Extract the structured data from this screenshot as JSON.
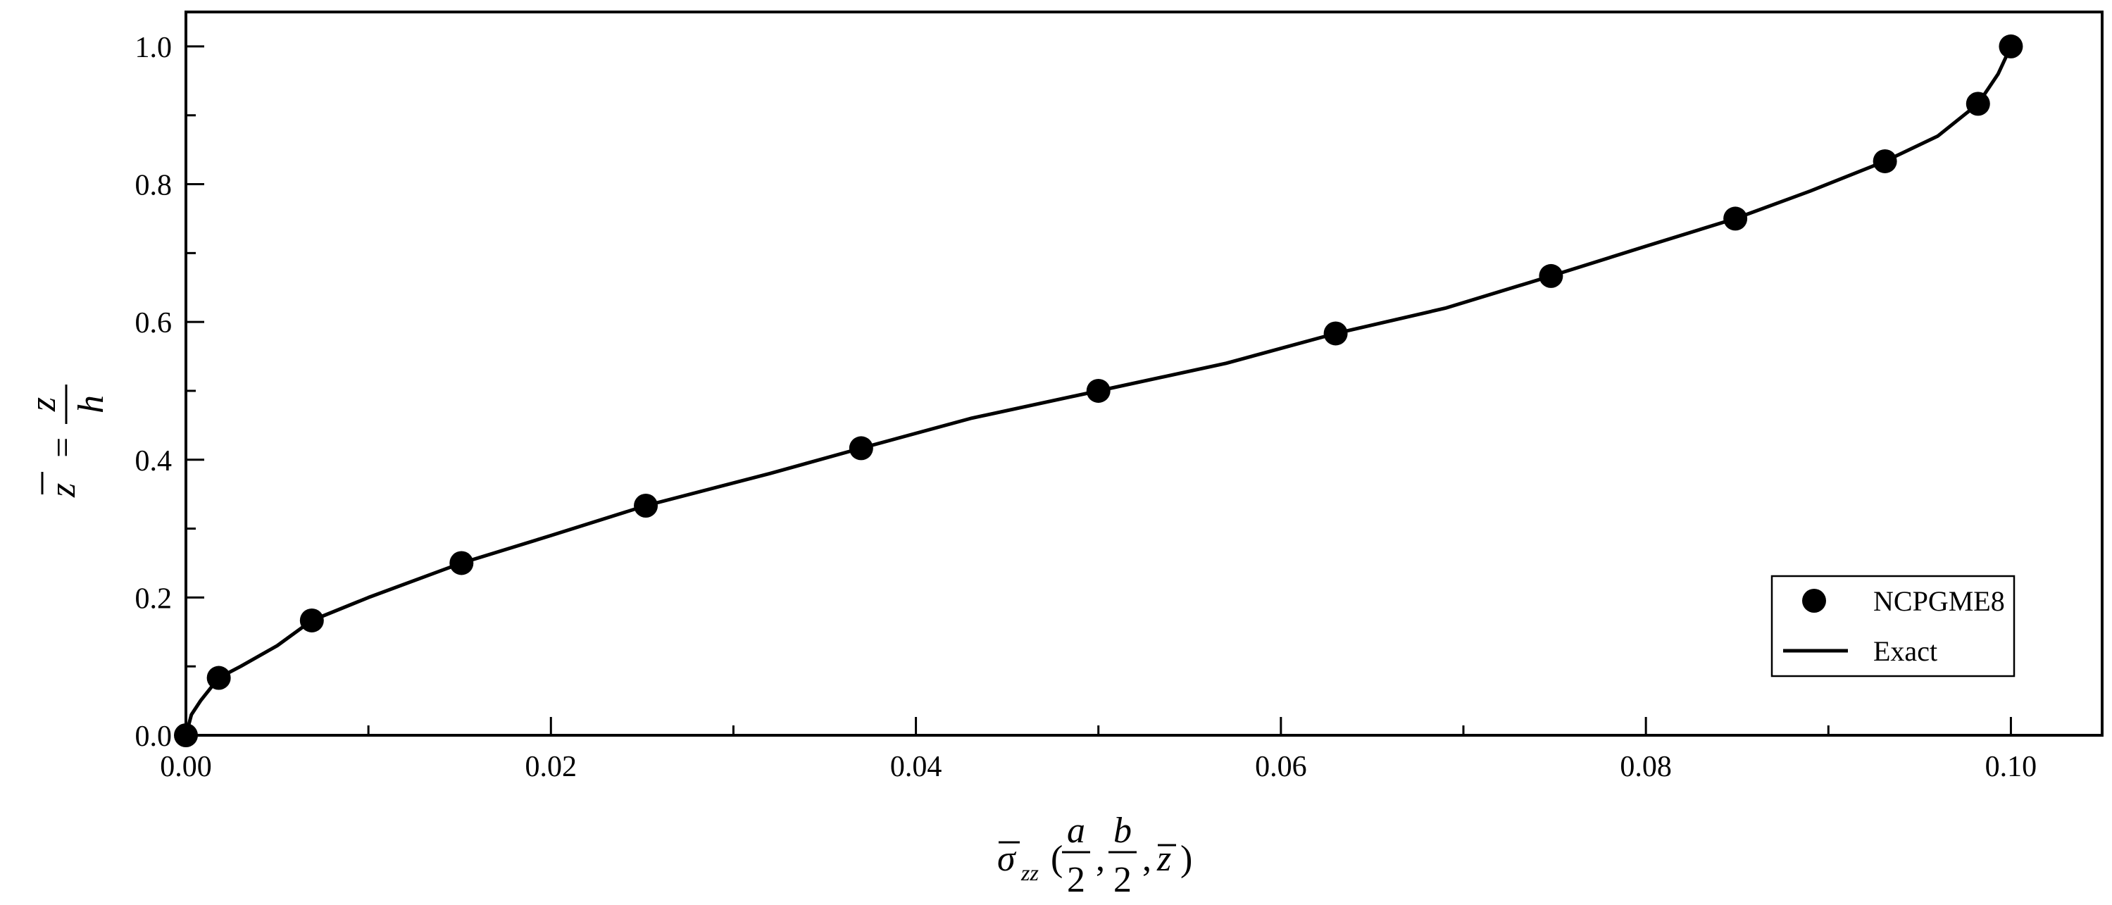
{
  "chart_data": {
    "type": "line+scatter",
    "xlim": [
      0.0,
      0.105
    ],
    "ylim": [
      0.0,
      1.05
    ],
    "xticks": [
      {
        "value": 0.0,
        "label": "0.00"
      },
      {
        "value": 0.02,
        "label": "0.02"
      },
      {
        "value": 0.04,
        "label": "0.04"
      },
      {
        "value": 0.06,
        "label": "0.06"
      },
      {
        "value": 0.08,
        "label": "0.08"
      },
      {
        "value": 0.1,
        "label": "0.10"
      }
    ],
    "xminor": [
      0.01,
      0.03,
      0.05,
      0.07,
      0.09
    ],
    "yticks": [
      {
        "value": 0.0,
        "label": "0.0"
      },
      {
        "value": 0.2,
        "label": "0.2"
      },
      {
        "value": 0.4,
        "label": "0.4"
      },
      {
        "value": 0.6,
        "label": "0.6"
      },
      {
        "value": 0.8,
        "label": "0.8"
      },
      {
        "value": 1.0,
        "label": "1.0"
      }
    ],
    "yminor": [
      0.1,
      0.3,
      0.5,
      0.7,
      0.9
    ],
    "grid": false,
    "legend_position": "bottom-right",
    "series": [
      {
        "name": "NCPGME8",
        "kind": "scatter",
        "color": "#000000",
        "x": [
          0.0,
          0.0018,
          0.0069,
          0.0151,
          0.0252,
          0.037,
          0.05,
          0.063,
          0.0748,
          0.0849,
          0.0931,
          0.0982,
          0.1
        ],
        "y": [
          0.0,
          0.0833,
          0.1667,
          0.25,
          0.3333,
          0.4167,
          0.5,
          0.5833,
          0.6667,
          0.75,
          0.8333,
          0.9167,
          1.0
        ]
      },
      {
        "name": "Exact",
        "kind": "line",
        "color": "#000000",
        "x": [
          0.0,
          0.0003,
          0.0008,
          0.0018,
          0.003,
          0.005,
          0.0069,
          0.01,
          0.0151,
          0.02,
          0.0252,
          0.032,
          0.037,
          0.043,
          0.05,
          0.057,
          0.063,
          0.069,
          0.0748,
          0.08,
          0.0849,
          0.089,
          0.0931,
          0.096,
          0.0982,
          0.0993,
          0.1
        ],
        "y": [
          0.0,
          0.03,
          0.05,
          0.0833,
          0.1,
          0.13,
          0.1667,
          0.2,
          0.25,
          0.29,
          0.3333,
          0.38,
          0.4167,
          0.46,
          0.5,
          0.54,
          0.5833,
          0.62,
          0.6667,
          0.71,
          0.75,
          0.79,
          0.8333,
          0.87,
          0.9167,
          0.96,
          1.0
        ]
      }
    ]
  }
}
